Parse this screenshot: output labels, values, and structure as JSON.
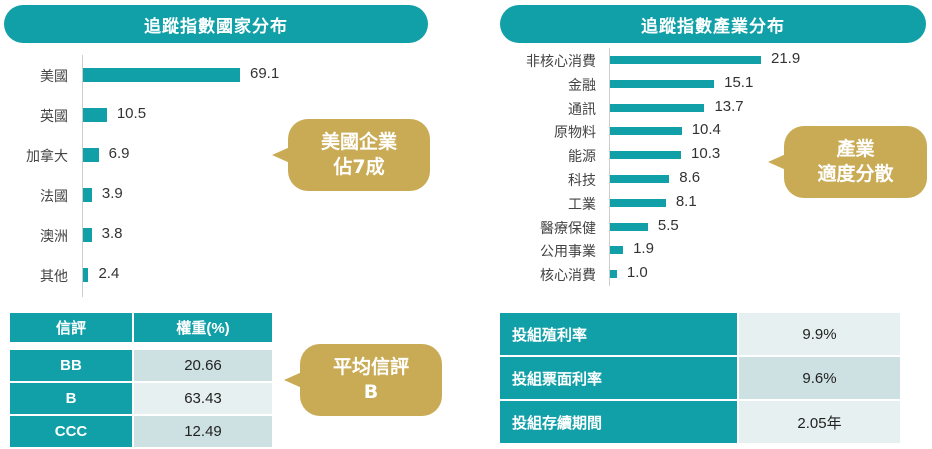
{
  "colors": {
    "accent": "#12a0a8",
    "callout": "#c9ab55"
  },
  "chart_data": [
    {
      "type": "bar",
      "orientation": "horizontal",
      "title": "追蹤指數國家分布",
      "categories": [
        "美國",
        "英國",
        "加拿大",
        "法國",
        "澳洲",
        "其他"
      ],
      "values": [
        69.1,
        10.5,
        6.9,
        3.9,
        3.8,
        2.4
      ],
      "grid": false
    },
    {
      "type": "bar",
      "orientation": "horizontal",
      "title": "追蹤指數產業分布",
      "categories": [
        "非核心消費",
        "金融",
        "通訊",
        "原物料",
        "能源",
        "科技",
        "工業",
        "醫療保健",
        "公用事業",
        "核心消費"
      ],
      "values": [
        21.9,
        15.1,
        13.7,
        10.4,
        10.3,
        8.6,
        8.1,
        5.5,
        1.9,
        1.0
      ],
      "grid": false
    }
  ],
  "callouts": {
    "country": [
      "美國企業",
      "佔7成"
    ],
    "sector": [
      "產業",
      "適度分散"
    ],
    "rating": [
      "平均信評",
      "B"
    ]
  },
  "rating_table": {
    "headers": [
      "信評",
      "權重(%)"
    ],
    "rows": [
      [
        "BB",
        "20.66"
      ],
      [
        "B",
        "63.43"
      ],
      [
        "CCC",
        "12.49"
      ]
    ]
  },
  "portfolio_table": {
    "rows": [
      [
        "投組殖利率",
        "9.9%"
      ],
      [
        "投組票面利率",
        "9.6%"
      ],
      [
        "投組存續期間",
        "2.05年"
      ]
    ]
  }
}
